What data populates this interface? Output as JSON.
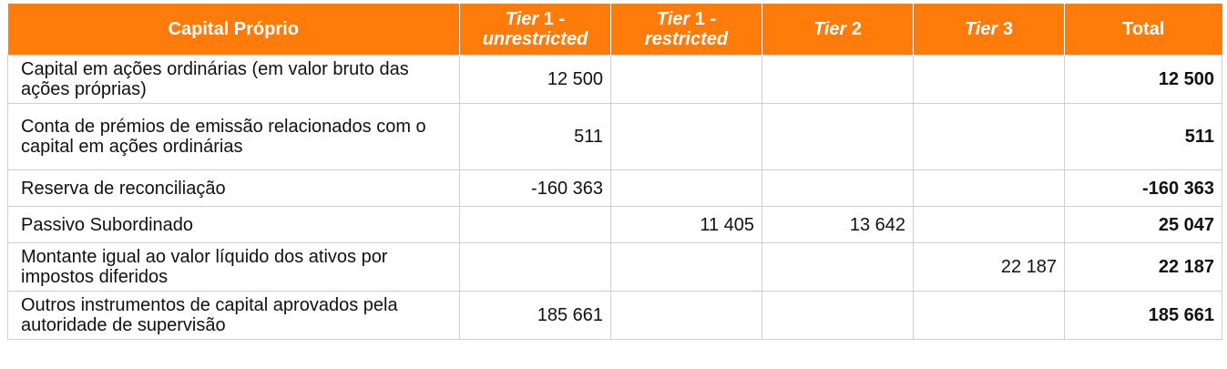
{
  "header": {
    "label_col": "Capital Próprio",
    "tier1_unrestricted": {
      "tier": "Tier",
      "num": "1 -",
      "sub": "unrestricted"
    },
    "tier1_restricted": {
      "tier": "Tier",
      "num": "1 -",
      "sub": "restricted"
    },
    "tier2": {
      "tier": "Tier",
      "num": "2"
    },
    "tier3": {
      "tier": "Tier",
      "num": "3"
    },
    "total": "Total"
  },
  "rows": [
    {
      "label": "Capital em ações ordinárias (em valor bruto das ações próprias)",
      "t1u": "12 500",
      "t1r": "",
      "t2": "",
      "t3": "",
      "total": "12 500"
    },
    {
      "label": "Conta de prémios de emissão relacionados com o capital em ações ordinárias",
      "t1u": "511",
      "t1r": "",
      "t2": "",
      "t3": "",
      "total": "511"
    },
    {
      "label": "Reserva de reconciliação",
      "t1u": "-160 363",
      "t1r": "",
      "t2": "",
      "t3": "",
      "total": "-160 363"
    },
    {
      "label": "Passivo Subordinado",
      "t1u": "",
      "t1r": "11 405",
      "t2": "13 642",
      "t3": "",
      "total": "25 047"
    },
    {
      "label": "Montante igual ao valor líquido dos ativos por impostos diferidos",
      "t1u": "",
      "t1r": "",
      "t2": "",
      "t3": "22 187",
      "total": "22 187"
    },
    {
      "label": "Outros instrumentos de capital aprovados pela autoridade de supervisão",
      "t1u": "185 661",
      "t1r": "",
      "t2": "",
      "t3": "",
      "total": "185 661"
    }
  ],
  "colors": {
    "header_bg": "#ff7b0a",
    "header_text": "#ffffff",
    "grid": "#cfcfcf"
  }
}
